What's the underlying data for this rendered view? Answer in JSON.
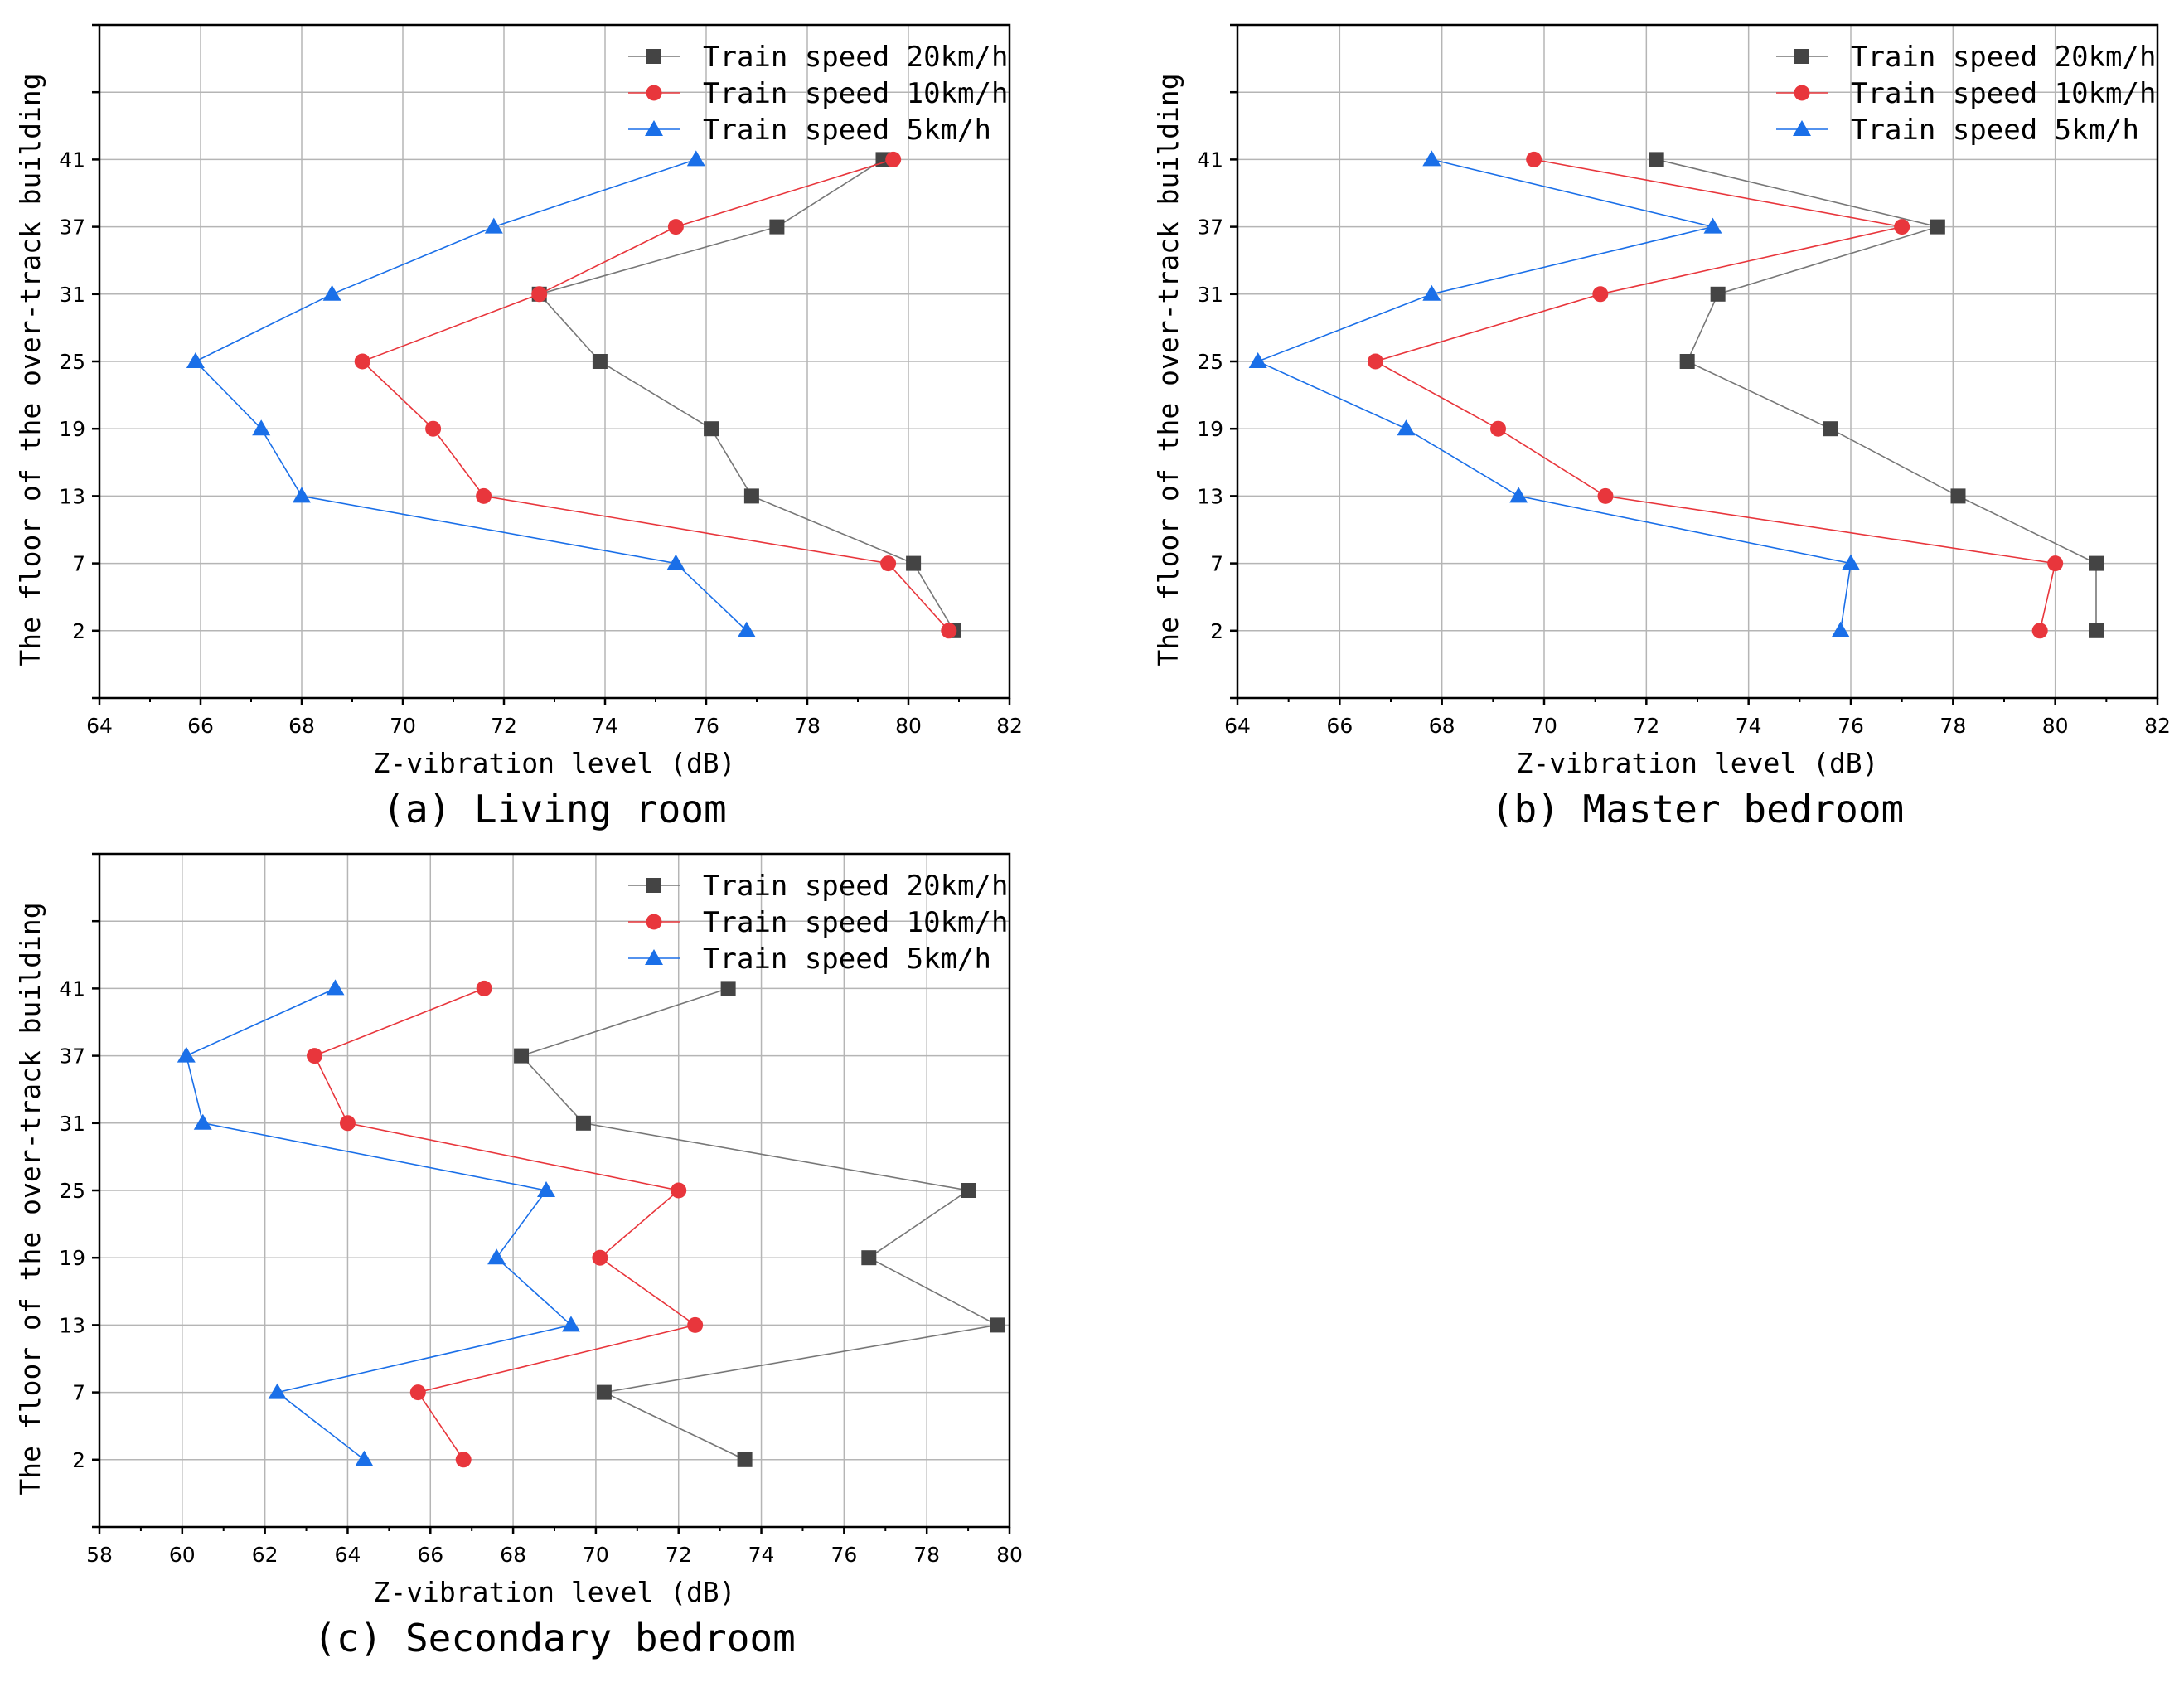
{
  "series_styles": [
    {
      "name": "Train speed 20km/h",
      "color": "#444444",
      "line_color": "#777777",
      "marker": "square"
    },
    {
      "name": "Train speed 10km/h",
      "color": "#e8363c",
      "line_color": "#e8363c",
      "marker": "circle"
    },
    {
      "name": "Train speed 5km/h",
      "color": "#1a6fe8",
      "line_color": "#1a6fe8",
      "marker": "triangle"
    }
  ],
  "chart_data": [
    {
      "type": "line",
      "caption": "(a) Living room",
      "xlabel": "Z-vibration level (dB)",
      "ylabel": "The floor of the over-track building",
      "xlim": [
        64,
        82
      ],
      "xticks": [
        64,
        66,
        68,
        70,
        72,
        74,
        76,
        78,
        80,
        82
      ],
      "floors": [
        "2",
        "7",
        "13",
        "19",
        "25",
        "31",
        "37",
        "41"
      ],
      "legend_position": "top-right",
      "grid": true,
      "series": [
        {
          "name": "Train speed 20km/h",
          "values": [
            80.9,
            80.1,
            76.9,
            76.1,
            73.9,
            72.7,
            77.4,
            79.5
          ]
        },
        {
          "name": "Train speed 10km/h",
          "values": [
            80.8,
            79.6,
            71.6,
            70.6,
            69.2,
            72.7,
            75.4,
            79.7
          ]
        },
        {
          "name": "Train speed 5km/h",
          "values": [
            76.8,
            75.4,
            68.0,
            67.2,
            65.9,
            68.6,
            71.8,
            75.8
          ]
        }
      ]
    },
    {
      "type": "line",
      "caption": "(b) Master bedroom",
      "xlabel": "Z-vibration level (dB)",
      "ylabel": "The floor of the over-track building",
      "xlim": [
        64,
        82
      ],
      "xticks": [
        64,
        66,
        68,
        70,
        72,
        74,
        76,
        78,
        80,
        82
      ],
      "floors": [
        "2",
        "7",
        "13",
        "19",
        "25",
        "31",
        "37",
        "41"
      ],
      "legend_position": "top-right",
      "grid": true,
      "series": [
        {
          "name": "Train speed 20km/h",
          "values": [
            80.8,
            80.8,
            78.1,
            75.6,
            72.8,
            73.4,
            77.7,
            72.2
          ]
        },
        {
          "name": "Train speed 10km/h",
          "values": [
            79.7,
            80.0,
            71.2,
            69.1,
            66.7,
            71.1,
            77.0,
            69.8
          ]
        },
        {
          "name": "Train speed 5km/h",
          "values": [
            75.8,
            76.0,
            69.5,
            67.3,
            64.4,
            67.8,
            73.3,
            67.8
          ]
        }
      ]
    },
    {
      "type": "line",
      "caption": "(c) Secondary bedroom",
      "xlabel": "Z-vibration level (dB)",
      "ylabel": "The floor of the over-track building",
      "xlim": [
        58,
        80
      ],
      "xticks": [
        58,
        60,
        62,
        64,
        66,
        68,
        70,
        72,
        74,
        76,
        78,
        80
      ],
      "floors": [
        "2",
        "7",
        "13",
        "19",
        "25",
        "31",
        "37",
        "41"
      ],
      "legend_position": "top-right",
      "grid": true,
      "series": [
        {
          "name": "Train speed 20km/h",
          "values": [
            73.6,
            70.2,
            79.7,
            76.6,
            79.0,
            69.7,
            68.2,
            73.2
          ]
        },
        {
          "name": "Train speed 10km/h",
          "values": [
            66.8,
            65.7,
            72.4,
            70.1,
            72.0,
            64.0,
            63.2,
            67.3
          ]
        },
        {
          "name": "Train speed 5km/h",
          "values": [
            64.4,
            62.3,
            69.4,
            67.6,
            68.8,
            60.5,
            60.1,
            63.7
          ]
        }
      ]
    }
  ]
}
